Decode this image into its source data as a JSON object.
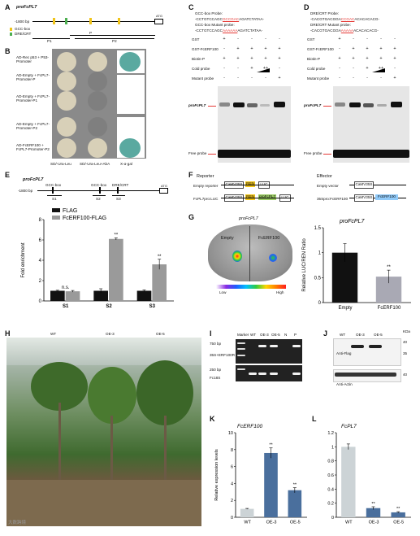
{
  "panels": {
    "A": "A",
    "B": "B",
    "C": "C",
    "D": "D",
    "E": "E",
    "F": "F",
    "G": "G",
    "H": "H",
    "I": "I",
    "J": "J",
    "K": "K",
    "L": "L"
  },
  "a": {
    "title": "proFcPL7",
    "start": "-1800 bp",
    "atg": "ATG",
    "legend": [
      "GCC-box",
      "DRE/CRT"
    ],
    "fragments": [
      "P1",
      "P",
      "P2"
    ]
  },
  "b": {
    "rows": [
      "AD-Rec p53 + P53-Promoter",
      "AD-Empty + FcPL7-Promoter-P",
      "AD-Empty + FcPL7-Promoter-P1",
      "AD-Empty + FcPL7-Promoter-P2",
      "AD-FcERF100 + FcPL7-Promoter-P2"
    ],
    "media": [
      "SD/-Ura-Leu",
      "SD/-Ura-Leu+AbA",
      "X-α-gal"
    ]
  },
  "c": {
    "probe_title": "GCC-box Probe:",
    "probe_seq_a": "-CCTGTCCAGC",
    "probe_seq_hl": "GCCGAC",
    "probe_seq_b": "AGATCTATAA-",
    "mut_title": "GCC-box Mutant probe:",
    "mut_seq_a": "-CCTGTCCAGC",
    "mut_seq_hl": "AAAAAA",
    "mut_seq_b": "AGATCTATAA-",
    "rows": [
      "GST",
      "GST-FcERF100",
      "Biotin-P",
      "Cold probe",
      "Mutant probe"
    ],
    "signs": [
      [
        "+",
        "-",
        "-",
        "-",
        "-"
      ],
      [
        "-",
        "+",
        "+",
        "+",
        "+"
      ],
      [
        "+",
        "+",
        "+",
        "+",
        "+"
      ],
      [
        "-",
        "-",
        "+",
        "++",
        "-"
      ],
      [
        "-",
        "-",
        "-",
        "-",
        "+"
      ]
    ],
    "shift_label": "proFcPL7",
    "free_label": "Free probe"
  },
  "d": {
    "probe_title": "DRE/CRT Probe:",
    "probe_seq_a": "-CACGTGACGGA",
    "probe_seq_hl": "CCGAC",
    "probe_seq_b": "ACACACACG-",
    "mut_title": "DRE/CRT Mutant probe:",
    "mut_seq_a": "-CACGTGACGGA",
    "mut_seq_hl": "AAAAA",
    "mut_seq_b": "ACACACACG-",
    "rows": [
      "GST",
      "GST-FcERF100",
      "Biotin-P",
      "Cold probe",
      "Mutant probe"
    ],
    "signs": [
      [
        "+",
        "-",
        "-",
        "-",
        "-"
      ],
      [
        "-",
        "+",
        "+",
        "+",
        "+"
      ],
      [
        "+",
        "+",
        "+",
        "+",
        "+"
      ],
      [
        "-",
        "-",
        "+",
        "++",
        "-"
      ],
      [
        "-",
        "-",
        "-",
        "-",
        "+"
      ]
    ],
    "shift_label": "proFcPL7",
    "free_label": "Free probe"
  },
  "e": {
    "title": "proFcPL7",
    "start": "-1800 bp",
    "atg": "ATG",
    "elements": [
      "GCC-box",
      "GCC-box",
      "DRE/CRT"
    ],
    "regions": [
      "S1",
      "S2",
      "S3"
    ]
  },
  "f": {
    "reporter": "Reporter",
    "effector": "Effector",
    "empty_reporter": "Empty reporter",
    "fc_reporter": "FcPL7pro:LUC",
    "empty_effector": "Empty vector",
    "fc_effector": "35Spro:FcERF100",
    "labels": [
      "CaMV35S",
      "REN",
      "LUC",
      "NOS",
      "proFcPL7",
      "FcERF100"
    ]
  },
  "g": {
    "title": "proFcPL7",
    "left": "Empty",
    "right": "FcERF100",
    "low": "Low",
    "high": "High"
  },
  "h": {
    "labels": [
      "WT",
      "OE-3",
      "OE-5"
    ]
  },
  "i": {
    "lanes": [
      "Marker",
      "WT",
      "OE-3",
      "OE-5",
      "N",
      "P"
    ],
    "row1_size": "750 bp",
    "row1_name": "35S+ERF100R",
    "row2_size": "250 bp",
    "row2_name": "Fc18S"
  },
  "j": {
    "lanes": [
      "WT",
      "OE-3",
      "OE-5"
    ],
    "kda": "KDa",
    "sizes": [
      "40",
      "35",
      "40"
    ],
    "row1": "Anti-Flag",
    "row2": "Anti-Actin"
  },
  "watermark": "大数跨境",
  "chart_data": [
    {
      "type": "bar",
      "title": "proFcPL7",
      "categories": [
        "S1",
        "S2",
        "S3"
      ],
      "series": [
        {
          "name": "FLAG",
          "values": [
            1.0,
            1.0,
            1.0
          ],
          "errors": [
            0.05,
            0.2,
            0.08
          ]
        },
        {
          "name": "FcERF100-FLAG",
          "values": [
            0.95,
            6.1,
            3.6
          ],
          "errors": [
            0.08,
            0.1,
            0.5
          ]
        }
      ],
      "significance": [
        "n.s.",
        "**",
        "**"
      ],
      "ylabel": "Fold enrichment",
      "ylim": [
        0,
        8
      ],
      "yticks": [
        0,
        2,
        4,
        6,
        8
      ],
      "colors": [
        "#111111",
        "#9a9a9a"
      ],
      "legend": "top-left"
    },
    {
      "type": "bar",
      "title": "proFcPL7",
      "categories": [
        "Empty",
        "FcERF100"
      ],
      "values": [
        1.0,
        0.52
      ],
      "errors": [
        0.18,
        0.13
      ],
      "significance": [
        "",
        "**"
      ],
      "ylabel": "Relative LUC/REN Ratio",
      "ylim": [
        0,
        1.5
      ],
      "yticks": [
        0.0,
        0.5,
        1.0,
        1.5
      ],
      "colors": [
        "#111111",
        "#a9a9b4"
      ]
    },
    {
      "type": "bar",
      "title": "FcERF100",
      "categories": [
        "WT",
        "OE-3",
        "OE-5"
      ],
      "values": [
        1.0,
        7.6,
        3.2
      ],
      "errors": [
        0.05,
        0.6,
        0.3
      ],
      "significance": [
        "",
        "**",
        "**"
      ],
      "ylabel": "Relative expression levels",
      "ylim": [
        0,
        10
      ],
      "yticks": [
        0,
        2,
        4,
        6,
        8,
        10
      ],
      "colors": [
        "#ccd3d6",
        "#4a6f9d",
        "#4a6f9d"
      ]
    },
    {
      "type": "bar",
      "title": "FcPL7",
      "categories": [
        "WT",
        "OE-3",
        "OE-5"
      ],
      "values": [
        1.0,
        0.13,
        0.07
      ],
      "errors": [
        0.04,
        0.02,
        0.01
      ],
      "significance": [
        "",
        "**",
        "**"
      ],
      "ylabel": "",
      "ylim": [
        0,
        1.2
      ],
      "yticks": [
        0.0,
        0.2,
        0.4,
        0.6,
        0.8,
        1.0,
        1.2
      ],
      "colors": [
        "#ccd3d6",
        "#4a6f9d",
        "#4a6f9d"
      ]
    }
  ]
}
